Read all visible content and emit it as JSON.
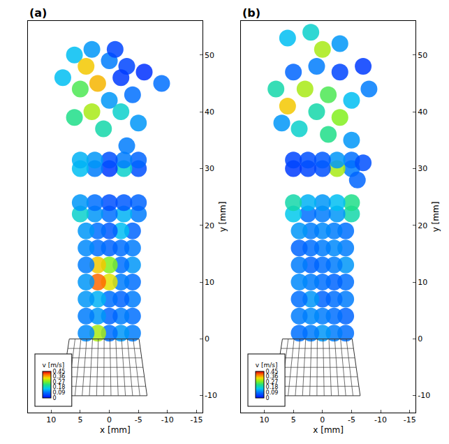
{
  "chart_data": [
    {
      "type": "scatter",
      "panel": "(a)",
      "marker": "circle",
      "grid": false,
      "x_label": "x [mm]",
      "y_label": "y [mm]",
      "xlim": [
        14,
        -16
      ],
      "xticks": [
        10,
        5,
        0,
        -5,
        -10,
        -15
      ],
      "ylim": [
        -13,
        56
      ],
      "yticks": [
        -10,
        0,
        10,
        20,
        30,
        40,
        50
      ],
      "colorbar_title": "v [m/s]",
      "v_range": [
        0,
        0.45
      ],
      "v_ticks": [
        0,
        0.09,
        0.18,
        0.27,
        0.36,
        0.45
      ],
      "x": [
        -4,
        -2,
        0,
        2,
        4,
        -4,
        -2,
        0,
        2,
        4,
        -4,
        -2,
        0,
        2,
        4,
        -4,
        -2,
        0,
        2,
        4,
        -4,
        -2,
        0,
        2,
        4,
        -4,
        -2,
        0,
        2,
        4,
        -4,
        -2,
        0,
        2,
        4,
        -5,
        -2.5,
        0,
        2.5,
        5,
        -5,
        -2.5,
        0,
        2.5,
        5,
        -5,
        -2.5,
        0,
        2.5,
        5,
        -5,
        -2.5,
        0,
        2.5,
        5,
        -3,
        6,
        3,
        0,
        -3,
        -6,
        -2,
        2,
        5,
        0,
        -4,
        3,
        -2,
        6,
        1,
        -5,
        8,
        -9,
        4,
        -1
      ],
      "y": [
        1,
        1,
        1,
        1,
        1,
        4,
        4,
        4,
        4,
        4,
        7,
        7,
        7,
        7,
        7,
        10,
        10,
        10,
        10,
        10,
        13,
        13,
        13,
        13,
        13,
        16,
        16,
        16,
        16,
        16,
        19,
        19,
        19,
        19,
        19,
        22,
        22,
        22,
        22,
        22,
        24,
        24,
        24,
        24,
        24,
        30,
        30,
        30,
        30,
        30,
        31.5,
        31.5,
        31.5,
        31.5,
        31.5,
        34,
        50,
        51,
        49,
        48,
        47,
        46,
        45,
        44,
        42,
        43,
        40,
        40,
        39,
        37,
        38,
        46,
        45,
        48,
        51
      ],
      "v": [
        0.1,
        0.12,
        0.09,
        0.3,
        0.11,
        0.09,
        0.1,
        0.08,
        0.12,
        0.1,
        0.1,
        0.08,
        0.09,
        0.14,
        0.12,
        0.09,
        0.1,
        0.33,
        0.4,
        0.12,
        0.12,
        0.09,
        0.28,
        0.35,
        0.1,
        0.1,
        0.09,
        0.08,
        0.09,
        0.11,
        0.08,
        0.15,
        0.07,
        0.09,
        0.12,
        0.1,
        0.14,
        0.09,
        0.12,
        0.18,
        0.08,
        0.07,
        0.06,
        0.09,
        0.12,
        0.06,
        0.18,
        0.04,
        0.1,
        0.15,
        0.08,
        0.1,
        0.06,
        0.12,
        0.14,
        0.1,
        0.15,
        0.12,
        0.1,
        0.05,
        0.03,
        0.04,
        0.36,
        0.25,
        0.12,
        0.09,
        0.3,
        0.18,
        0.22,
        0.2,
        0.12,
        0.15,
        0.09,
        0.35,
        0.05
      ]
    },
    {
      "type": "scatter",
      "panel": "(b)",
      "marker": "circle",
      "grid": false,
      "x_label": "x [mm]",
      "y_label": "y [mm]",
      "xlim": [
        14,
        -16
      ],
      "xticks": [
        10,
        5,
        0,
        -5,
        -10,
        -15
      ],
      "ylim": [
        -13,
        56
      ],
      "yticks": [
        -10,
        0,
        10,
        20,
        30,
        40,
        50
      ],
      "colorbar_title": "v [m/s]",
      "v_range": [
        0,
        0.45
      ],
      "v_ticks": [
        0,
        0.09,
        0.18,
        0.27,
        0.36,
        0.45
      ],
      "x": [
        -4,
        -2,
        0,
        2,
        4,
        -4,
        -2,
        0,
        2,
        4,
        -4,
        -2,
        0,
        2,
        4,
        -4,
        -2,
        0,
        2,
        4,
        -4,
        -2,
        0,
        2,
        4,
        -4,
        -2,
        0,
        2,
        4,
        -4,
        -2,
        0,
        2,
        4,
        -5,
        -2.5,
        0,
        2.5,
        5,
        -5,
        -2.5,
        0,
        2.5,
        5,
        -5,
        -2.5,
        0,
        2.5,
        5,
        -5,
        -2.5,
        0,
        2.5,
        5,
        -7,
        -6,
        -5,
        6,
        2,
        -3,
        -7,
        -3,
        1,
        5,
        8,
        3,
        -1,
        -5,
        6,
        1,
        -3,
        4,
        -1,
        7,
        -8,
        0
      ],
      "y": [
        1,
        1,
        1,
        1,
        1,
        4,
        4,
        4,
        4,
        4,
        7,
        7,
        7,
        7,
        7,
        10,
        10,
        10,
        10,
        10,
        13,
        13,
        13,
        13,
        13,
        16,
        16,
        16,
        16,
        16,
        19,
        19,
        19,
        19,
        19,
        22,
        22,
        22,
        22,
        22,
        24,
        24,
        24,
        24,
        24,
        30,
        30,
        30,
        30,
        30,
        31.5,
        31.5,
        31.5,
        31.5,
        31.5,
        31,
        28,
        35,
        53,
        54,
        52,
        48,
        47,
        48,
        47,
        44,
        44,
        43,
        42,
        41,
        40,
        39,
        37,
        36,
        38,
        44,
        51
      ],
      "v": [
        0.09,
        0.1,
        0.12,
        0.1,
        0.09,
        0.08,
        0.09,
        0.1,
        0.11,
        0.1,
        0.1,
        0.09,
        0.08,
        0.12,
        0.09,
        0.09,
        0.08,
        0.09,
        0.1,
        0.11,
        0.12,
        0.1,
        0.09,
        0.08,
        0.1,
        0.1,
        0.11,
        0.1,
        0.09,
        0.08,
        0.09,
        0.1,
        0.11,
        0.1,
        0.12,
        0.2,
        0.12,
        0.1,
        0.09,
        0.16,
        0.22,
        0.15,
        0.12,
        0.14,
        0.2,
        0.1,
        0.3,
        0.06,
        0.05,
        0.04,
        0.09,
        0.12,
        0.07,
        0.06,
        0.05,
        0.06,
        0.08,
        0.12,
        0.15,
        0.18,
        0.12,
        0.04,
        0.05,
        0.1,
        0.08,
        0.2,
        0.3,
        0.25,
        0.15,
        0.35,
        0.2,
        0.28,
        0.18,
        0.22,
        0.12,
        0.1,
        0.3
      ]
    }
  ]
}
